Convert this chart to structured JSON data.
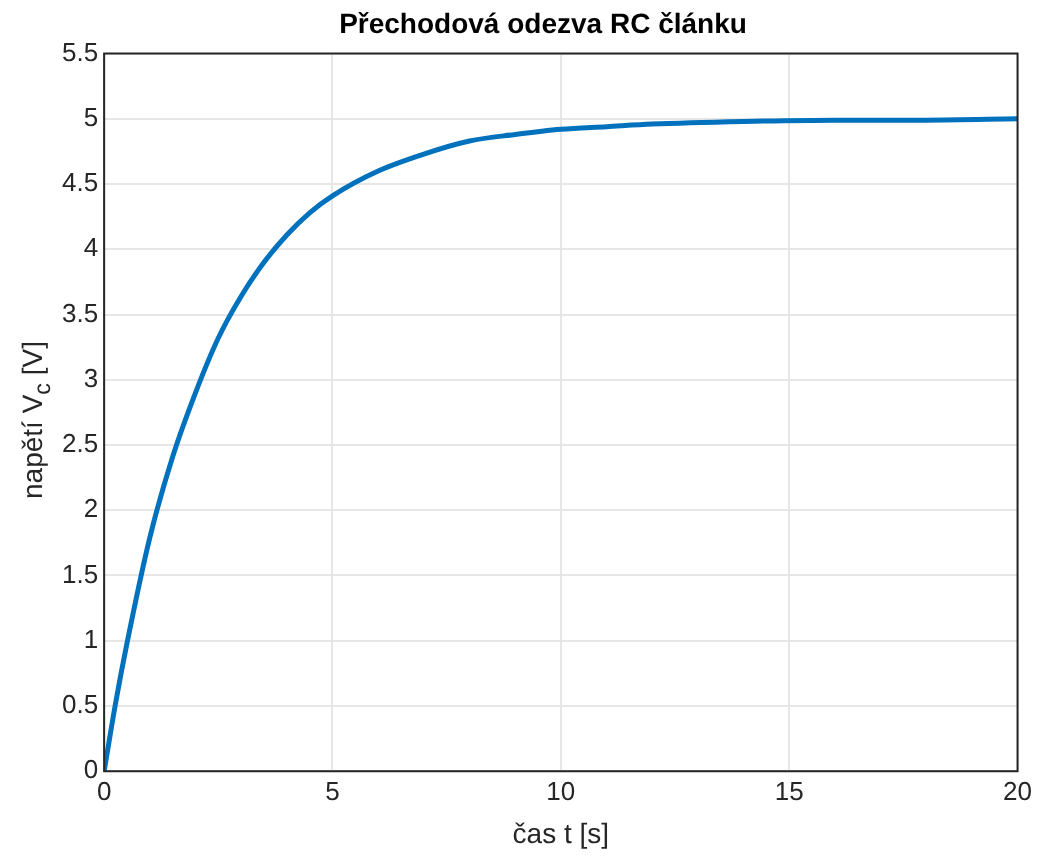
{
  "chart_data": {
    "type": "line",
    "title": "Přechodová odezva RC článku",
    "xlabel": "čas t [s]",
    "ylabel": "napětí V$_{c}$ [V]",
    "x": [
      0,
      0.25,
      0.5,
      1,
      1.5,
      2,
      2.5,
      3,
      3.5,
      4,
      4.5,
      5,
      6,
      7,
      8,
      9,
      10,
      11,
      12,
      14,
      16,
      18,
      20
    ],
    "series": [
      {
        "color": "#0072bd",
        "values": [
          0,
          0.52,
          0.98,
          1.79,
          2.41,
          2.9,
          3.32,
          3.64,
          3.9,
          4.11,
          4.28,
          4.41,
          4.6,
          4.73,
          4.83,
          4.88,
          4.92,
          4.94,
          4.96,
          4.98,
          4.99,
          4.99,
          5.0
        ]
      }
    ],
    "xlim": [
      0,
      20
    ],
    "xticks": [
      0,
      5,
      10,
      15,
      20
    ],
    "ylim": [
      0,
      5.5
    ],
    "yticks": [
      0,
      0.5,
      1,
      1.5,
      2,
      2.5,
      3,
      3.5,
      4,
      4.5,
      5,
      5.5
    ],
    "grid": true,
    "marker": "none",
    "line_style": "solid",
    "legend": false
  }
}
